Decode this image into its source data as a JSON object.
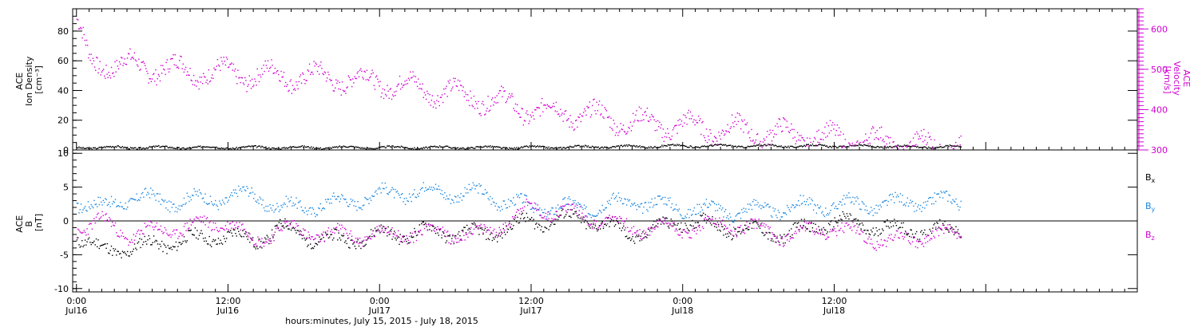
{
  "colors": {
    "density": "#000000",
    "velocity": "#d000d0",
    "bx": "#000000",
    "by": "#1a86e0",
    "bz": "#d000d0"
  },
  "chart_data": [
    {
      "type": "scatter",
      "panel": "top",
      "left_axis": {
        "label_lines": [
          "ACE",
          "Ion Density",
          "[cm⁻³]"
        ],
        "ylim": [
          0,
          95
        ],
        "ticks": [
          "0",
          "20",
          "40",
          "60",
          "80"
        ]
      },
      "right_axis": {
        "label_lines": [
          "ACE",
          "Velocity",
          "[km/s]"
        ],
        "ylim": [
          300,
          650
        ],
        "ticks": [
          "300",
          "400",
          "500",
          "600"
        ]
      },
      "series": [
        {
          "name": "Ion Density",
          "axis": "left",
          "x_hours": [
            0,
            6,
            12,
            18,
            24,
            30,
            36,
            42,
            48,
            54,
            60,
            66,
            70
          ],
          "y": [
            2,
            2,
            2,
            2,
            2,
            2,
            2,
            2.5,
            3,
            3,
            3,
            2.5,
            2.5
          ]
        },
        {
          "name": "Velocity",
          "axis": "right",
          "x_hours": [
            0,
            1,
            4,
            8,
            12,
            16,
            20,
            24,
            28,
            32,
            36,
            40,
            44,
            48,
            52,
            56,
            60,
            64,
            68,
            70
          ],
          "y": [
            610,
            520,
            510,
            500,
            490,
            485,
            480,
            470,
            450,
            430,
            400,
            390,
            370,
            360,
            350,
            340,
            330,
            320,
            310,
            310
          ]
        }
      ]
    },
    {
      "type": "scatter",
      "panel": "bottom",
      "left_axis": {
        "label_lines": [
          "ACE",
          "B",
          "[nT]"
        ],
        "ylim": [
          -10.5,
          10.5
        ],
        "ticks": [
          "-10",
          "-5",
          "0",
          "5",
          "10"
        ]
      },
      "legend": [
        {
          "sym": "B",
          "sub": "x",
          "color": "#000000"
        },
        {
          "sym": "B",
          "sub": "y",
          "color": "#1a86e0"
        },
        {
          "sym": "B",
          "sub": "z",
          "color": "#d000d0"
        }
      ],
      "series": [
        {
          "name": "Bx",
          "x_hours": [
            0,
            2,
            4,
            8,
            12,
            14,
            16,
            18,
            20,
            24,
            28,
            32,
            36,
            40,
            44,
            48,
            52,
            56,
            60,
            64,
            68,
            70
          ],
          "y": [
            -2,
            -4.5,
            -4,
            -3,
            -2,
            -3,
            -1,
            -2,
            -3,
            -2,
            -1.5,
            -2,
            0,
            0.5,
            -2,
            0,
            -1,
            -2,
            0,
            -1,
            -1.5,
            -1
          ]
        },
        {
          "name": "By",
          "x_hours": [
            0,
            2,
            4,
            8,
            12,
            14,
            16,
            20,
            24,
            28,
            32,
            36,
            40,
            44,
            48,
            52,
            56,
            60,
            64,
            68,
            70
          ],
          "y": [
            3,
            2,
            3.5,
            3,
            3.5,
            4,
            2,
            2.5,
            4,
            4.5,
            4,
            2,
            2,
            3,
            2,
            1.5,
            2,
            2.5,
            2.5,
            3,
            3
          ]
        },
        {
          "name": "Bz",
          "x_hours": [
            0,
            2,
            4,
            8,
            12,
            14,
            16,
            20,
            24,
            28,
            32,
            36,
            40,
            44,
            48,
            52,
            56,
            60,
            64,
            68,
            70
          ],
          "y": [
            -1,
            0,
            -2,
            -1,
            0,
            -3,
            -1,
            -2,
            -2,
            -1.5,
            -2,
            2,
            1,
            -1,
            -1,
            -0.5,
            -2,
            -1,
            -3,
            -2,
            -2
          ]
        }
      ]
    }
  ],
  "x_axis": {
    "xlim_hours": [
      -0.3,
      84
    ],
    "ticks": [
      {
        "hour": 0,
        "time": "0:00",
        "day": "Jul16"
      },
      {
        "hour": 12,
        "time": "12:00",
        "day": "Jul16"
      },
      {
        "hour": 24,
        "time": "0:00",
        "day": "Jul17"
      },
      {
        "hour": 36,
        "time": "12:00",
        "day": "Jul17"
      },
      {
        "hour": 48,
        "time": "0:00",
        "day": "Jul18"
      },
      {
        "hour": 60,
        "time": "12:00",
        "day": "Jul18"
      }
    ],
    "label": "hours:minutes, July 15, 2015 - July 18, 2015"
  }
}
